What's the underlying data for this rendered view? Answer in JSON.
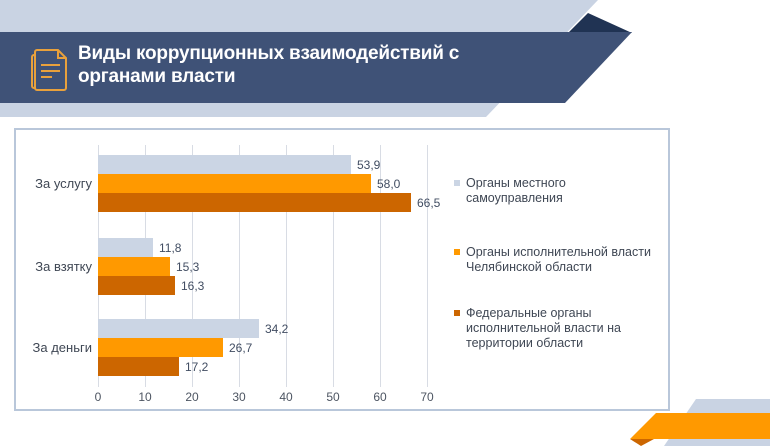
{
  "header": {
    "title": "Виды коррупционных взаимодействий с\nорганами власти",
    "icon": "document-icon"
  },
  "colors": {
    "band_light": "#c9d3e3",
    "banner": "#3f5277",
    "banner_fold": "#203353",
    "accent_orange": "#ff9900",
    "accent_dark_orange": "#cc6600",
    "bar_gray": "#cbd5e4",
    "chart_border": "#b9c7da",
    "gridline": "#d8dce4",
    "icon_stroke": "#e9a13c"
  },
  "chart_data": {
    "type": "bar",
    "orientation": "horizontal",
    "title": "",
    "categories": [
      "За услугу",
      "За взятку",
      "За деньги"
    ],
    "series": [
      {
        "name": "Органы местного самоуправления",
        "color": "#cbd5e4",
        "values": [
          53.9,
          11.8,
          34.2
        ],
        "labels": [
          "53,9",
          "11,8",
          "34,2"
        ]
      },
      {
        "name": "Органы исполнительной власти Челябинской области",
        "color": "#ff9900",
        "values": [
          58.0,
          15.3,
          26.7
        ],
        "labels": [
          "58,0",
          "15,3",
          "26,7"
        ]
      },
      {
        "name": "Федеральные органы исполнительной власти на территории области",
        "color": "#cc6600",
        "values": [
          66.5,
          16.3,
          17.2
        ],
        "labels": [
          "66,5",
          "16,3",
          "17,2"
        ]
      }
    ],
    "x_axis": {
      "min": 0,
      "max": 70,
      "ticks": [
        "0",
        "10",
        "20",
        "30",
        "40",
        "50",
        "60",
        "70"
      ]
    },
    "grid": true,
    "legend_position": "right",
    "legend": [
      {
        "label": "Органы местного\nсамоуправления",
        "color": "#cbd5e4"
      },
      {
        "label": "Органы исполнительной власти\nЧелябинской области",
        "color": "#ff9900"
      },
      {
        "label": "Федеральные органы\nисполнительной власти на\nтерритории области",
        "color": "#cc6600"
      }
    ]
  }
}
